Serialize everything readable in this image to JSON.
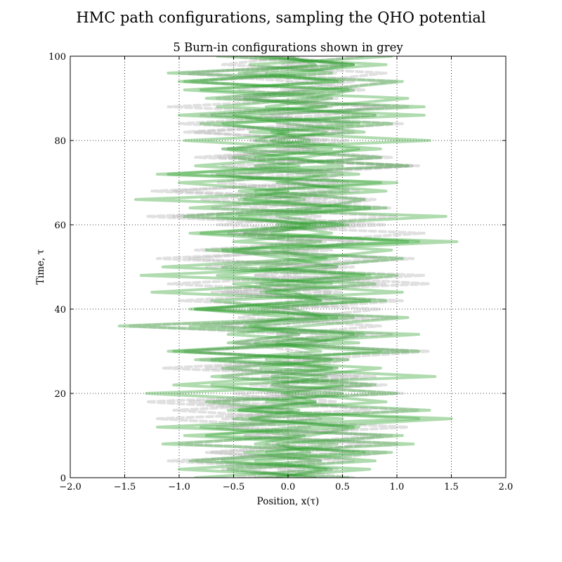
{
  "chart_data": {
    "type": "line",
    "title": "HMC path configurations, sampling the QHO potential",
    "subtitle": "5 Burn-in configurations shown in grey",
    "xlabel": "Position, x(τ)",
    "ylabel": "Time, τ",
    "xlim": [
      -2.0,
      2.0
    ],
    "ylim": [
      0,
      100
    ],
    "xticks": [
      -2.0,
      -1.5,
      -1.0,
      -0.5,
      0.0,
      0.5,
      1.0,
      1.5,
      2.0
    ],
    "xtick_labels": [
      "−2.0",
      "−1.5",
      "−1.0",
      "−0.5",
      "0.0",
      "0.5",
      "1.0",
      "1.5",
      "2.0"
    ],
    "yticks": [
      0,
      20,
      40,
      60,
      80,
      100
    ],
    "ytick_labels": [
      "0",
      "20",
      "40",
      "60",
      "80",
      "100"
    ],
    "grid": true,
    "grid_style": "dotted",
    "burn_in_color": "#bbbbbb",
    "path_color": "#2ca02c",
    "series": [
      {
        "kind": "burn-in",
        "x": [
          0.1,
          -0.35,
          0.6,
          -0.75,
          0.3,
          0.95,
          -0.5,
          0.2,
          -1.05,
          0.45,
          -0.2,
          0.75,
          -0.6,
          0.1,
          0.55,
          -0.95,
          0.35,
          -0.1,
          0.85,
          -0.45,
          0.0,
          1.05,
          -0.7,
          0.25,
          -0.3,
          0.6,
          -1.2,
          0.4,
          0.05,
          -0.55,
          0.9,
          -0.25,
          0.3,
          -0.8,
          0.65,
          0.1,
          -0.4,
          1.15,
          -0.65,
          0.2,
          -0.15,
          0.5,
          -1.0,
          0.35,
          0.8,
          -0.35,
          0.0,
          0.6,
          -0.9,
          0.25,
          -0.5
        ]
      },
      {
        "kind": "burn-in",
        "x": [
          -0.2,
          0.45,
          -0.85,
          0.15,
          0.7,
          -0.4,
          1.1,
          -0.6,
          0.05,
          -1.3,
          0.5,
          -0.1,
          0.8,
          -0.55,
          0.3,
          -0.95,
          0.2,
          0.65,
          -0.3,
          1.0,
          -0.75,
          0.1,
          0.4,
          -1.1,
          0.55,
          -0.2,
          0.85,
          -0.45,
          0.0,
          1.25,
          -0.65,
          0.3,
          -0.35,
          0.7,
          -1.05,
          0.15,
          0.5,
          -0.6,
          0.95,
          -0.1,
          0.35,
          -0.85,
          0.6,
          -0.25,
          1.1,
          -0.5,
          0.2,
          -0.9,
          0.45,
          -0.05,
          0.7
        ]
      },
      {
        "kind": "burn-in",
        "x": [
          0.35,
          -0.6,
          0.2,
          0.9,
          -1.0,
          0.05,
          0.55,
          -0.35,
          1.2,
          -0.7,
          0.25,
          -0.15,
          0.65,
          -1.15,
          0.4,
          0.1,
          -0.5,
          0.95,
          -0.8,
          0.3,
          -0.25,
          0.75,
          -0.55,
          1.3,
          -0.05,
          0.45,
          -0.9,
          0.2,
          0.6,
          -0.4,
          0.0,
          1.0,
          -0.7,
          0.35,
          -1.25,
          0.55,
          0.15,
          -0.3,
          0.85,
          -0.6,
          0.25,
          -0.1,
          1.05,
          -0.8,
          0.4,
          -0.45,
          0.7,
          0.05,
          -1.0,
          0.5,
          -0.2
        ]
      },
      {
        "kind": "burn-in",
        "x": [
          -0.45,
          0.15,
          -1.1,
          0.6,
          -0.2,
          0.85,
          -0.65,
          0.3,
          0.0,
          -0.9,
          1.05,
          -0.35,
          0.5,
          -0.75,
          0.2,
          1.3,
          -0.5,
          0.1,
          -1.45,
          0.7,
          -0.15,
          0.4,
          -0.6,
          0.9,
          -0.3,
          0.05,
          1.15,
          -0.85,
          0.35,
          -0.4,
          0.65,
          -1.05,
          0.25,
          0.8,
          -0.2,
          0.45,
          -0.7,
          1.2,
          -0.55,
          0.0,
          0.55,
          -0.95,
          0.3,
          -0.15,
          0.9,
          -0.65,
          0.2,
          1.0,
          -0.4,
          0.6,
          -0.1
        ]
      },
      {
        "kind": "burn-in",
        "x": [
          0.6,
          -0.1,
          0.3,
          -0.7,
          1.0,
          -0.4,
          0.2,
          -1.2,
          0.75,
          0.05,
          -0.5,
          0.9,
          -0.25,
          0.45,
          -0.8,
          1.1,
          -0.15,
          0.35,
          -0.6,
          0.1,
          0.85,
          -1.0,
          0.5,
          -0.3,
          1.25,
          -0.75,
          0.15,
          -0.05,
          0.7,
          -0.55,
          0.3,
          -1.3,
          0.95,
          -0.2,
          0.4,
          -0.65,
          0.05,
          1.15,
          -0.85,
          0.25,
          -0.35,
          0.6,
          -0.1,
          0.8,
          -1.1,
          0.45,
          -0.45,
          0.2,
          0.9,
          -0.6,
          0.1
        ]
      },
      {
        "kind": "sample",
        "x": [
          -0.85,
          0.4,
          -0.3,
          0.95,
          -1.15,
          0.2,
          0.65,
          -0.5,
          1.3,
          -0.2,
          0.5,
          -1.05,
          0.1,
          0.85,
          -0.7,
          0.3,
          -0.1,
          1.2,
          -0.9,
          0.45,
          -0.35,
          0.75,
          -1.25,
          0.15,
          1.0,
          -0.6,
          0.35,
          -0.15,
          1.55,
          -0.8,
          0.25,
          -0.45,
          0.9,
          -1.4,
          0.55,
          0.05,
          -0.65,
          1.1,
          -0.3,
          0.4,
          -0.95,
          0.7,
          0.0,
          -0.5,
          1.25,
          -0.75,
          0.3,
          1.05,
          -1.1,
          0.6,
          -0.25
        ]
      },
      {
        "kind": "sample",
        "x": [
          0.55,
          -1.0,
          0.3,
          -0.4,
          1.15,
          -0.75,
          0.1,
          1.5,
          -0.55,
          0.25,
          -1.3,
          0.8,
          -0.15,
          0.45,
          -0.85,
          1.2,
          -0.3,
          0.6,
          -1.55,
          0.35,
          0.05,
          -0.7,
          1.05,
          -0.25,
          0.7,
          -1.15,
          0.2,
          0.95,
          -0.5,
          0.4,
          -0.1,
          1.45,
          -0.9,
          0.15,
          -0.45,
          0.85,
          -1.2,
          0.5,
          0.0,
          -0.6,
          1.3,
          -0.35,
          0.65,
          -1.0,
          0.25,
          1.1,
          -0.8,
          0.45,
          -0.2,
          0.9,
          -0.65
        ]
      },
      {
        "kind": "sample",
        "x": [
          -0.3,
          0.75,
          -0.9,
          0.2,
          -0.1,
          1.05,
          -1.2,
          0.5,
          -0.45,
          0.9,
          0.05,
          -0.7,
          1.35,
          -0.25,
          0.4,
          -1.05,
          0.65,
          -0.55,
          0.15,
          1.1,
          -0.85,
          0.3,
          -0.2,
          0.8,
          -1.35,
          0.45,
          0.0,
          -0.6,
          1.2,
          -0.4,
          0.55,
          -0.95,
          0.25,
          0.7,
          -0.3,
          1.0,
          -1.1,
          0.1,
          -0.5,
          0.85,
          -0.15,
          0.35,
          -0.8,
          1.25,
          -0.65,
          0.2,
          0.6,
          -1.0,
          0.4,
          -0.35,
          0.95
        ]
      },
      {
        "kind": "sample",
        "x": [
          0.25,
          -0.55,
          0.8,
          -0.2,
          0.45,
          -0.95,
          0.6,
          -0.35,
          0.1,
          -0.75,
          1.0,
          -0.15,
          0.35,
          -0.6,
          0.55,
          -1.1,
          0.2,
          0.7,
          -0.4,
          0.05,
          -0.85,
          0.9,
          -0.25,
          0.4,
          -0.65,
          0.15,
          1.05,
          -0.5,
          0.3,
          -0.9,
          0.5,
          -0.1,
          0.75,
          -0.45,
          0.0,
          -1.0,
          0.65,
          -0.3,
          0.85,
          -0.55,
          0.2,
          -0.15,
          0.95,
          -0.7,
          0.35,
          -0.4,
          0.55,
          -0.95,
          0.1,
          0.6,
          -0.3
        ]
      },
      {
        "kind": "sample",
        "x": [
          -0.1,
          0.35,
          -0.6,
          0.7,
          -0.3,
          0.15,
          -0.8,
          1.2,
          -0.45,
          0.25,
          -0.05,
          0.5,
          -0.7,
          0.4,
          -0.2,
          0.85,
          -0.55,
          0.1,
          -0.35,
          0.6,
          -0.9,
          0.3,
          0.05,
          -0.5,
          0.75,
          -0.25,
          0.45,
          -0.75,
          1.1,
          -0.15,
          0.2,
          -0.65,
          0.55,
          -0.4,
          0.9,
          -0.1,
          0.35,
          -0.85,
          0.15,
          0.65,
          -0.3,
          0.0,
          -0.6,
          0.8,
          -0.2,
          0.4,
          -0.95,
          0.5,
          -0.45,
          0.25,
          0.0
        ]
      }
    ]
  }
}
